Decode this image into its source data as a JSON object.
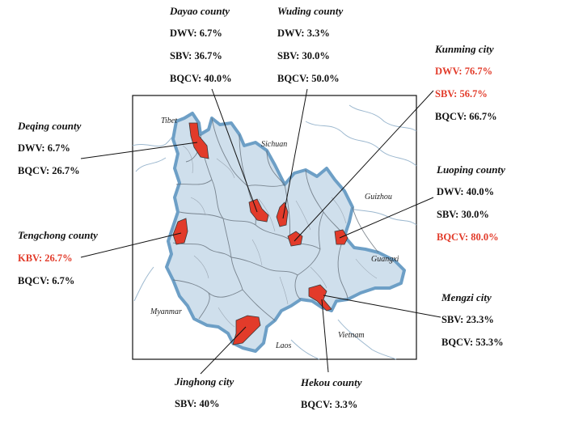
{
  "colors": {
    "highlight": "#e23b2a",
    "province_fill": "#cfdfec",
    "province_border": "#6d9fc6",
    "county_lines": "#9aa3ad",
    "neighbor_lines": "#9cb8cf",
    "text": "#111111"
  },
  "geography": {
    "tibet": "Tibet",
    "sichuan": "Sichuan",
    "guizhou": "Guizhou",
    "guangxi": "Guangxi",
    "myanmar": "Myanmar",
    "laos": "Laos",
    "vietnam": "Vietnam"
  },
  "sites": [
    {
      "id": "dayao",
      "name": "Dayao county",
      "stats": [
        {
          "text": "DWV: 6.7%",
          "highlight": false
        },
        {
          "text": "SBV: 36.7%",
          "highlight": false
        },
        {
          "text": "BQCV: 40.0%",
          "highlight": false
        }
      ]
    },
    {
      "id": "wuding",
      "name": "Wuding county",
      "stats": [
        {
          "text": "DWV: 3.3%",
          "highlight": false
        },
        {
          "text": "SBV: 30.0%",
          "highlight": false
        },
        {
          "text": "BQCV: 50.0%",
          "highlight": false
        }
      ]
    },
    {
      "id": "kunming",
      "name": "Kunming city",
      "stats": [
        {
          "text": "DWV: 76.7%",
          "highlight": true
        },
        {
          "text": "SBV: 56.7%",
          "highlight": true
        },
        {
          "text": "BQCV: 66.7%",
          "highlight": false
        }
      ]
    },
    {
      "id": "deqing",
      "name": "Deqing county",
      "stats": [
        {
          "text": "DWV: 6.7%",
          "highlight": false
        },
        {
          "text": "BQCV: 26.7%",
          "highlight": false
        }
      ]
    },
    {
      "id": "luoping",
      "name": "Luoping county",
      "stats": [
        {
          "text": "DWV: 40.0%",
          "highlight": false
        },
        {
          "text": "SBV: 30.0%",
          "highlight": false
        },
        {
          "text": "BQCV: 80.0%",
          "highlight": true
        }
      ]
    },
    {
      "id": "tengchong",
      "name": "Tengchong county",
      "stats": [
        {
          "text": "KBV: 26.7%",
          "highlight": true
        },
        {
          "text": "BQCV: 6.7%",
          "highlight": false
        }
      ]
    },
    {
      "id": "mengzi",
      "name": "Mengzi city",
      "stats": [
        {
          "text": "SBV: 23.3%",
          "highlight": false
        },
        {
          "text": "BQCV: 53.3%",
          "highlight": false
        }
      ]
    },
    {
      "id": "jinghong",
      "name": "Jinghong city",
      "stats": [
        {
          "text": "SBV: 40%",
          "highlight": false
        }
      ]
    },
    {
      "id": "hekou",
      "name": "Hekou county",
      "stats": [
        {
          "text": "BQCV: 3.3%",
          "highlight": false
        }
      ]
    }
  ]
}
